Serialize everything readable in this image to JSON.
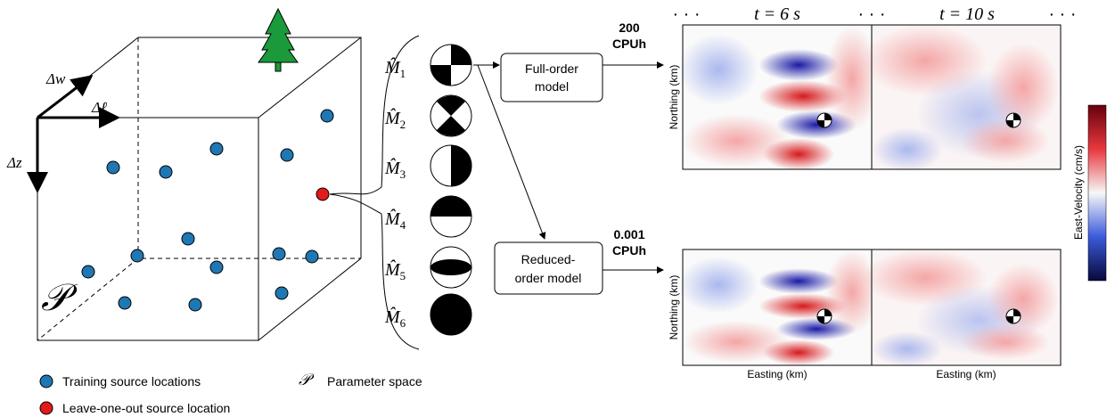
{
  "parameter_space": {
    "axes": {
      "w": "Δw",
      "l": "Δℓ",
      "z": "Δz"
    },
    "symbol": "𝒫"
  },
  "moment_tensors": [
    {
      "label": "M̂",
      "subscript": "1"
    },
    {
      "label": "M̂",
      "subscript": "2"
    },
    {
      "label": "M̂",
      "subscript": "3"
    },
    {
      "label": "M̂",
      "subscript": "4"
    },
    {
      "label": "M̂",
      "subscript": "5"
    },
    {
      "label": "M̂",
      "subscript": "6"
    }
  ],
  "models": [
    {
      "name_lines": [
        "Full-order",
        "model"
      ],
      "cost_lines": [
        "200",
        "CPUh"
      ]
    },
    {
      "name_lines": [
        "Reduced-",
        "order model"
      ],
      "cost_lines": [
        "0.001",
        "CPUh"
      ]
    }
  ],
  "time_header": {
    "dots": [
      "· · ·",
      "· · ·",
      "· · ·"
    ],
    "times": [
      "t = 6 s",
      "t = 10 s"
    ]
  },
  "panels": {
    "y_label": "Northing (km)",
    "x_label": "Easting (km)"
  },
  "colorbar": {
    "label": "East-Velocity (cm/s)"
  },
  "legend": [
    {
      "label": "Training source locations"
    },
    {
      "label": "Leave-one-out source location"
    },
    {
      "symbol": "𝒫",
      "label": "Parameter space"
    }
  ]
}
